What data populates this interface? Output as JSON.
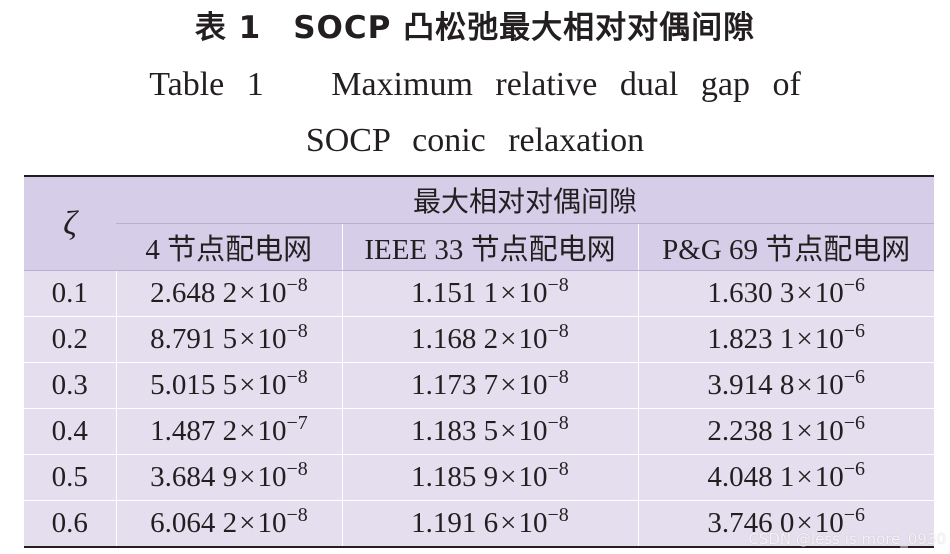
{
  "title_zh": "表 1　SOCP 凸松弛最大相对对偶间隙",
  "title_en_line1": "Table 1   Maximum relative dual gap of",
  "title_en_line2": "SOCP conic relaxation",
  "table": {
    "row_header": "ζ",
    "group_header": "最大相对对偶间隙",
    "columns": [
      "4 节点配电网",
      "IEEE 33 节点配电网",
      "P&G 69 节点配电网"
    ],
    "rows": [
      {
        "zeta": "0.1",
        "cells": [
          {
            "mantissa": "2.648 2",
            "exponent": "−8"
          },
          {
            "mantissa": "1.151 1",
            "exponent": "−8"
          },
          {
            "mantissa": "1.630 3",
            "exponent": "−6"
          }
        ]
      },
      {
        "zeta": "0.2",
        "cells": [
          {
            "mantissa": "8.791 5",
            "exponent": "−8"
          },
          {
            "mantissa": "1.168 2",
            "exponent": "−8"
          },
          {
            "mantissa": "1.823 1",
            "exponent": "−6"
          }
        ]
      },
      {
        "zeta": "0.3",
        "cells": [
          {
            "mantissa": "5.015 5",
            "exponent": "−8"
          },
          {
            "mantissa": "1.173 7",
            "exponent": "−8"
          },
          {
            "mantissa": "3.914 8",
            "exponent": "−6"
          }
        ]
      },
      {
        "zeta": "0.4",
        "cells": [
          {
            "mantissa": "1.487 2",
            "exponent": "−7"
          },
          {
            "mantissa": "1.183 5",
            "exponent": "−8"
          },
          {
            "mantissa": "2.238 1",
            "exponent": "−6"
          }
        ]
      },
      {
        "zeta": "0.5",
        "cells": [
          {
            "mantissa": "3.684 9",
            "exponent": "−8"
          },
          {
            "mantissa": "1.185 9",
            "exponent": "−8"
          },
          {
            "mantissa": "4.048 1",
            "exponent": "−6"
          }
        ]
      },
      {
        "zeta": "0.6",
        "cells": [
          {
            "mantissa": "6.064 2",
            "exponent": "−8"
          },
          {
            "mantissa": "1.191 6",
            "exponent": "−8"
          },
          {
            "mantissa": "3.746 0",
            "exponent": "−6"
          }
        ]
      }
    ],
    "times_symbol": "×",
    "base": "10"
  },
  "watermark": "CSDN @less is more_0930",
  "colors": {
    "header_bg": "#d6cde8",
    "body_bg": "#e4deef",
    "rule": "#231f20"
  }
}
